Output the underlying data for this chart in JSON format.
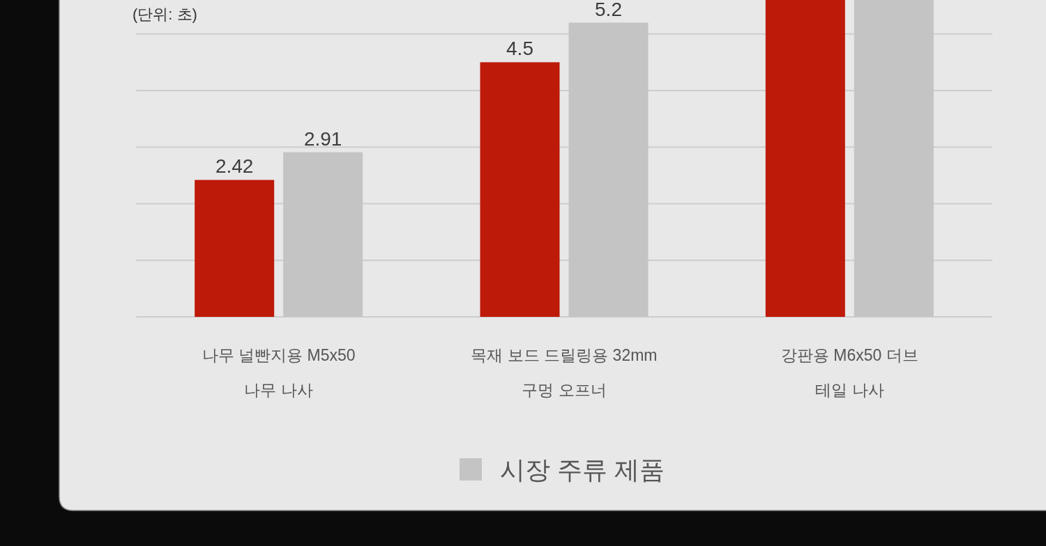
{
  "chart_data": {
    "type": "bar",
    "categories": [
      "나무 널빤지용 M5x50\n나무 나사",
      "목재 보드 드릴링용 32mm\n구멍 오프너",
      "강판용 M6x50 더브\n테일 나사"
    ],
    "series": [
      {
        "color": "#be1a0a",
        "values": [
          2.42,
          4.5,
          5.6
        ],
        "value_labels": [
          "2.42",
          "4.5",
          null
        ]
      },
      {
        "name": "시장 주류 제품",
        "color": "#c4c4c4",
        "values": [
          2.91,
          5.2,
          5.6
        ],
        "value_labels": [
          "2.91",
          "5.2",
          null
        ]
      }
    ],
    "ylim": [
      0,
      5.6
    ],
    "yticks": [
      {
        "value": 0,
        "label": null
      },
      {
        "value": 1,
        "label": null
      },
      {
        "value": 2,
        "label": null
      },
      {
        "value": 3,
        "label": null
      },
      {
        "value": 4,
        "label": null
      },
      {
        "value": 5,
        "label": null
      }
    ],
    "grid": "y",
    "tick_labels": "x",
    "legend": "bottom",
    "annotations": [
      "(단위: 초)"
    ]
  }
}
